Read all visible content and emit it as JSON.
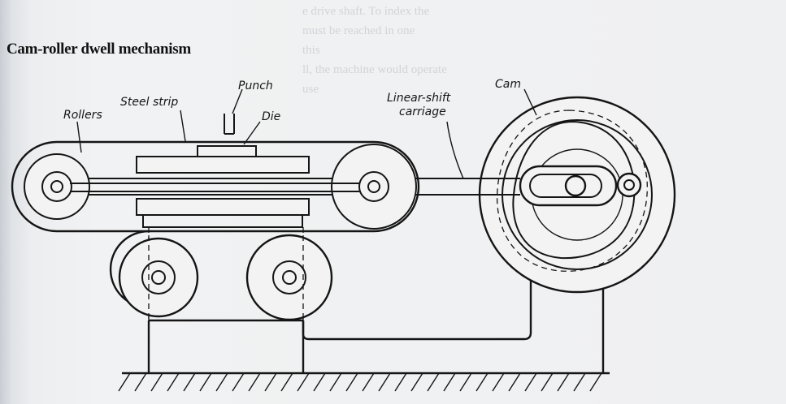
{
  "figure": {
    "title": "Cam-roller dwell mechanism"
  },
  "labels": {
    "rollers": "Rollers",
    "steel_strip": "Steel strip",
    "punch": "Punch",
    "die": "Die",
    "carriage_line1": "Linear-shift",
    "carriage_line2": "carriage",
    "cam": "Cam"
  },
  "bleed_through_text": [
    "e drive shaft. To index the",
    "must be reached in one",
    "this",
    "ll, the machine would operate",
    "use"
  ],
  "colors": {
    "ink": "#151515",
    "paper": "#f1f2f3"
  }
}
